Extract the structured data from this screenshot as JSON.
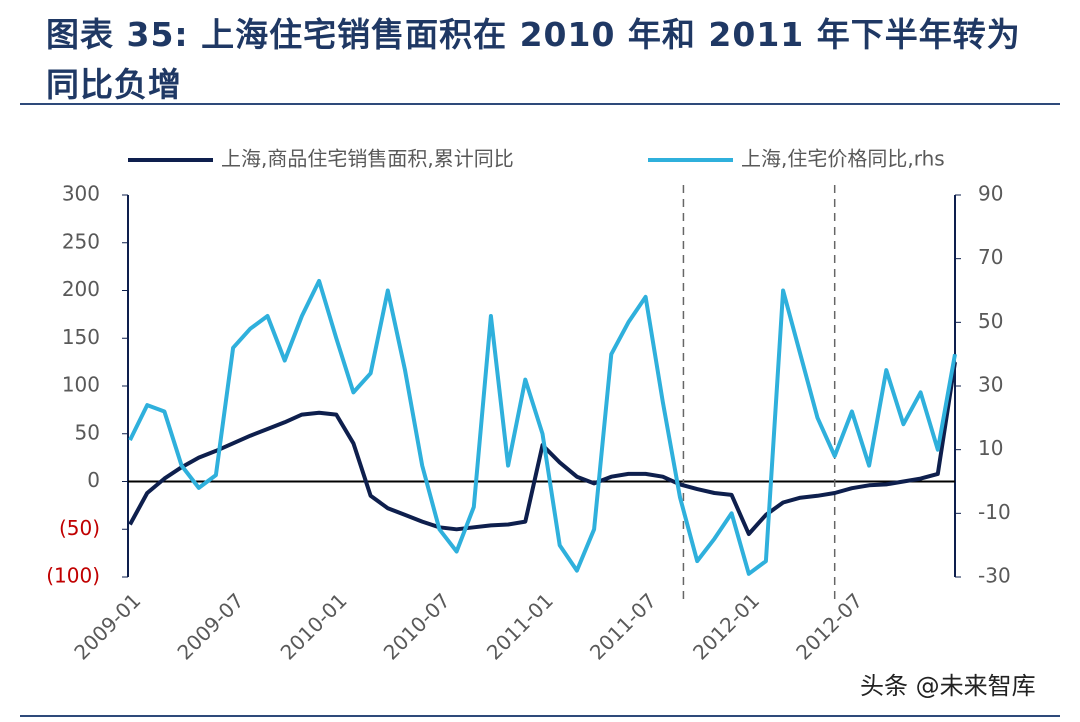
{
  "chart_data": {
    "type": "line",
    "title": "图表 35: 上海住宅销售面积在 2010 年和 2011 年下半年转为同比负增",
    "watermark": "头条 @未来智库",
    "categories": [
      "2009-01",
      null,
      null,
      null,
      null,
      null,
      "2009-07",
      null,
      null,
      null,
      null,
      null,
      "2010-01",
      null,
      null,
      null,
      null,
      null,
      "2010-07",
      null,
      null,
      null,
      null,
      null,
      "2011-01",
      null,
      null,
      null,
      null,
      null,
      "2011-07",
      null,
      null,
      null,
      null,
      null,
      "2012-01",
      null,
      null,
      null,
      null,
      null,
      "2012-07",
      null,
      null,
      null,
      null,
      null,
      null
    ],
    "series": [
      {
        "name": "上海,商品住宅销售面积,累计同比",
        "color": "#0e1f4d",
        "values": [
          -45,
          -12,
          3,
          15,
          25,
          32,
          40,
          48,
          55,
          62,
          70,
          72,
          70,
          40,
          -15,
          -28,
          -35,
          -42,
          -48,
          -50,
          -48,
          -46,
          -45,
          -42,
          38,
          20,
          5,
          -2,
          5,
          8,
          8,
          5,
          -3,
          -8,
          -12,
          -14,
          -55,
          -35,
          -22,
          -17,
          -15,
          -12,
          -7,
          -4,
          -3,
          0,
          3,
          8,
          125
        ]
      },
      {
        "name": "上海,住宅价格同比,rhs",
        "color": "#2fb0dc",
        "axis": "y2",
        "values": [
          13,
          24,
          22,
          5,
          -2,
          2,
          42,
          48,
          52,
          38,
          52,
          63,
          45,
          28,
          34,
          60,
          35,
          5,
          -15,
          -22,
          -8,
          52,
          5,
          32,
          15,
          -20,
          -28,
          -15,
          40,
          50,
          58,
          25,
          -5,
          -25,
          -18,
          -10,
          -29,
          -25,
          60,
          40,
          20,
          8,
          22,
          5,
          35,
          18,
          28,
          10,
          40
        ]
      }
    ],
    "ylim": [
      -100,
      300
    ],
    "yticks": [
      300,
      250,
      200,
      150,
      100,
      50,
      0,
      {
        "value": -50,
        "label": "(50)"
      },
      {
        "value": -100,
        "label": "(100)"
      }
    ],
    "negative_tick_color": "#c00000",
    "y2lim": [
      -30,
      90
    ],
    "y2ticks": [
      90,
      70,
      50,
      30,
      10,
      -10,
      -30
    ],
    "legend": "top"
  }
}
